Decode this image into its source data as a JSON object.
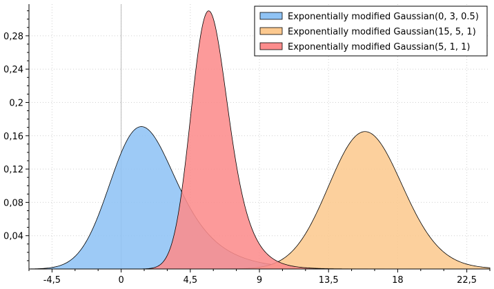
{
  "chart_data": {
    "type": "area",
    "title": "",
    "xlabel": "",
    "ylabel": "",
    "xlim": [
      -6,
      24
    ],
    "ylim": [
      0,
      0.318
    ],
    "x_ticks": [
      -4.5,
      0,
      4.5,
      9,
      13.5,
      18,
      22.5
    ],
    "x_tick_labels": [
      "-4,5",
      "0",
      "4,5",
      "9",
      "13,5",
      "18",
      "22,5"
    ],
    "y_ticks": [
      0.04,
      0.08,
      0.12,
      0.16,
      0.2,
      0.24,
      0.28
    ],
    "y_tick_labels": [
      "0,04",
      "0,08",
      "0,12",
      "0,16",
      "0,2",
      "0,24",
      "0,28"
    ],
    "grid": true,
    "legend_position": "top-right",
    "series": [
      {
        "name": "Exponentially modified Gaussian(0, 3, 0.5)",
        "color": "#8fc3f5",
        "params": {
          "mu": 0,
          "sigma": 3,
          "lambda": 0.5
        },
        "peak": {
          "x": 1.3,
          "y": 0.171
        }
      },
      {
        "name": "Exponentially modified Gaussian(15, 5, 1)",
        "color": "#fcc98f",
        "params": {
          "mu": 15,
          "sigma": 5,
          "lambda": 1
        },
        "peak": {
          "x": 15.8,
          "y": 0.165
        }
      },
      {
        "name": "Exponentially modified Gaussian(5, 1, 1)",
        "color": "#fc8c8c",
        "params": {
          "mu": 5,
          "sigma": 1,
          "lambda": 1
        },
        "peak": {
          "x": 5.7,
          "y": 0.31
        }
      }
    ]
  }
}
